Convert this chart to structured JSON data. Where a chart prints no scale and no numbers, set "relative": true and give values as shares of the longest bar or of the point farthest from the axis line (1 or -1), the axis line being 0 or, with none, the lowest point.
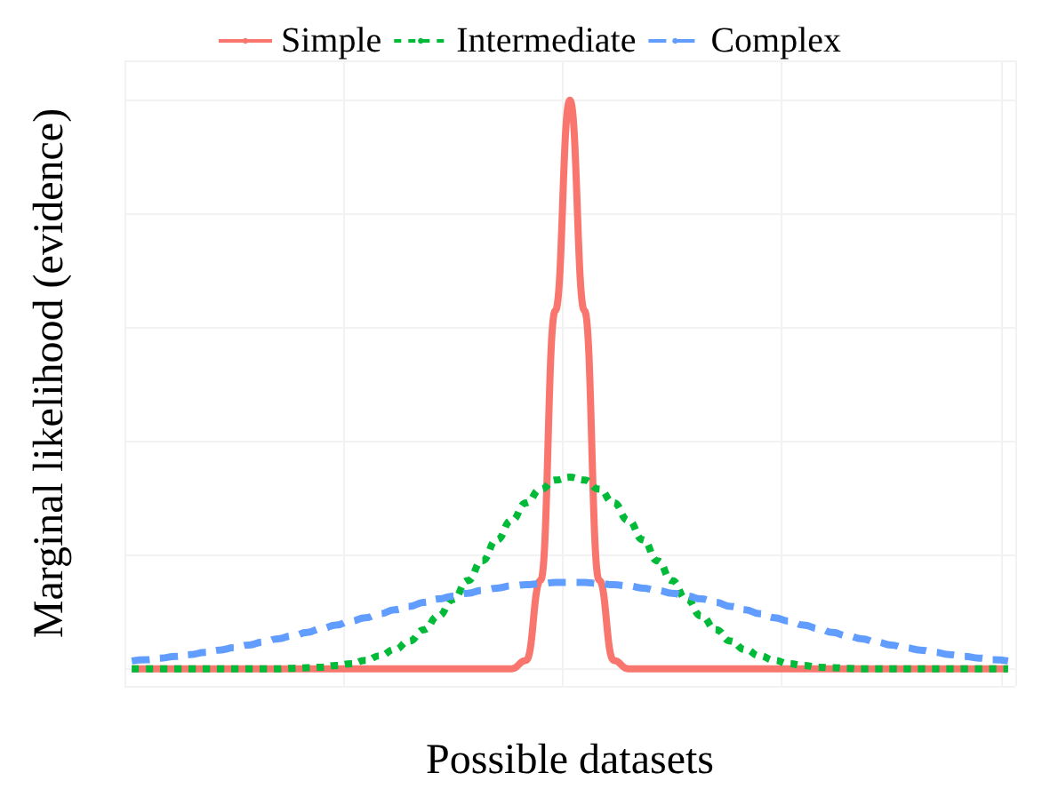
{
  "chart_data": {
    "type": "line",
    "relative": true,
    "xlabel": "Possible datasets",
    "ylabel": "Marginal likelihood (evidence)",
    "categories": [
      null,
      null,
      null,
      null,
      null,
      null,
      null,
      null,
      null,
      null,
      null,
      null,
      null,
      null,
      null,
      null,
      null,
      null,
      null,
      null,
      null,
      null,
      null,
      null,
      null,
      null,
      null,
      null,
      null,
      null,
      null,
      null,
      null,
      null,
      null,
      null,
      null,
      null,
      null,
      null,
      null,
      null,
      null,
      null,
      null,
      null,
      null,
      null,
      null,
      null,
      null,
      null,
      null,
      null,
      null,
      null,
      null,
      null,
      null,
      null,
      null
    ],
    "grid": true,
    "legend": "top",
    "marker": "none",
    "series": [
      {
        "name": "Simple",
        "color": "#f8766d",
        "line_style": "solid",
        "values": [
          0,
          0,
          0,
          0,
          0,
          0,
          0,
          0,
          0,
          0,
          0,
          0,
          0,
          0,
          0,
          0,
          0,
          0,
          0,
          0,
          0,
          0,
          0,
          0,
          0,
          0,
          0,
          0.015,
          0.156,
          0.63,
          1,
          0.63,
          0.156,
          0.015,
          0,
          0,
          0,
          0,
          0,
          0,
          0,
          0,
          0,
          0,
          0,
          0,
          0,
          0,
          0,
          0,
          0,
          0,
          0,
          0,
          0,
          0,
          0,
          0,
          0,
          0,
          0
        ]
      },
      {
        "name": "Intermediate",
        "color": "#00ba38",
        "line_style": "dotted",
        "values": [
          0,
          0,
          0,
          0,
          0,
          0,
          0,
          0,
          0,
          0,
          0,
          0.001,
          0.002,
          0.003,
          0.006,
          0.009,
          0.015,
          0.023,
          0.034,
          0.049,
          0.069,
          0.093,
          0.122,
          0.155,
          0.19,
          0.227,
          0.261,
          0.292,
          0.316,
          0.332,
          0.337,
          0.332,
          0.316,
          0.292,
          0.261,
          0.227,
          0.19,
          0.155,
          0.122,
          0.093,
          0.069,
          0.049,
          0.034,
          0.023,
          0.015,
          0.009,
          0.006,
          0.003,
          0.002,
          0.001,
          0,
          0,
          0,
          0,
          0,
          0,
          0,
          0,
          0,
          0,
          0
        ]
      },
      {
        "name": "Complex",
        "color": "#619cff",
        "line_style": "dashed",
        "values": [
          0.014,
          0.016,
          0.019,
          0.022,
          0.025,
          0.029,
          0.033,
          0.037,
          0.042,
          0.047,
          0.053,
          0.058,
          0.064,
          0.071,
          0.077,
          0.084,
          0.09,
          0.097,
          0.104,
          0.11,
          0.117,
          0.123,
          0.128,
          0.133,
          0.138,
          0.142,
          0.146,
          0.148,
          0.15,
          0.152,
          0.152,
          0.152,
          0.15,
          0.148,
          0.146,
          0.142,
          0.138,
          0.133,
          0.128,
          0.123,
          0.117,
          0.11,
          0.104,
          0.097,
          0.09,
          0.084,
          0.077,
          0.071,
          0.064,
          0.058,
          0.053,
          0.047,
          0.042,
          0.037,
          0.033,
          0.029,
          0.025,
          0.022,
          0.019,
          0.016,
          0.014
        ]
      }
    ]
  }
}
